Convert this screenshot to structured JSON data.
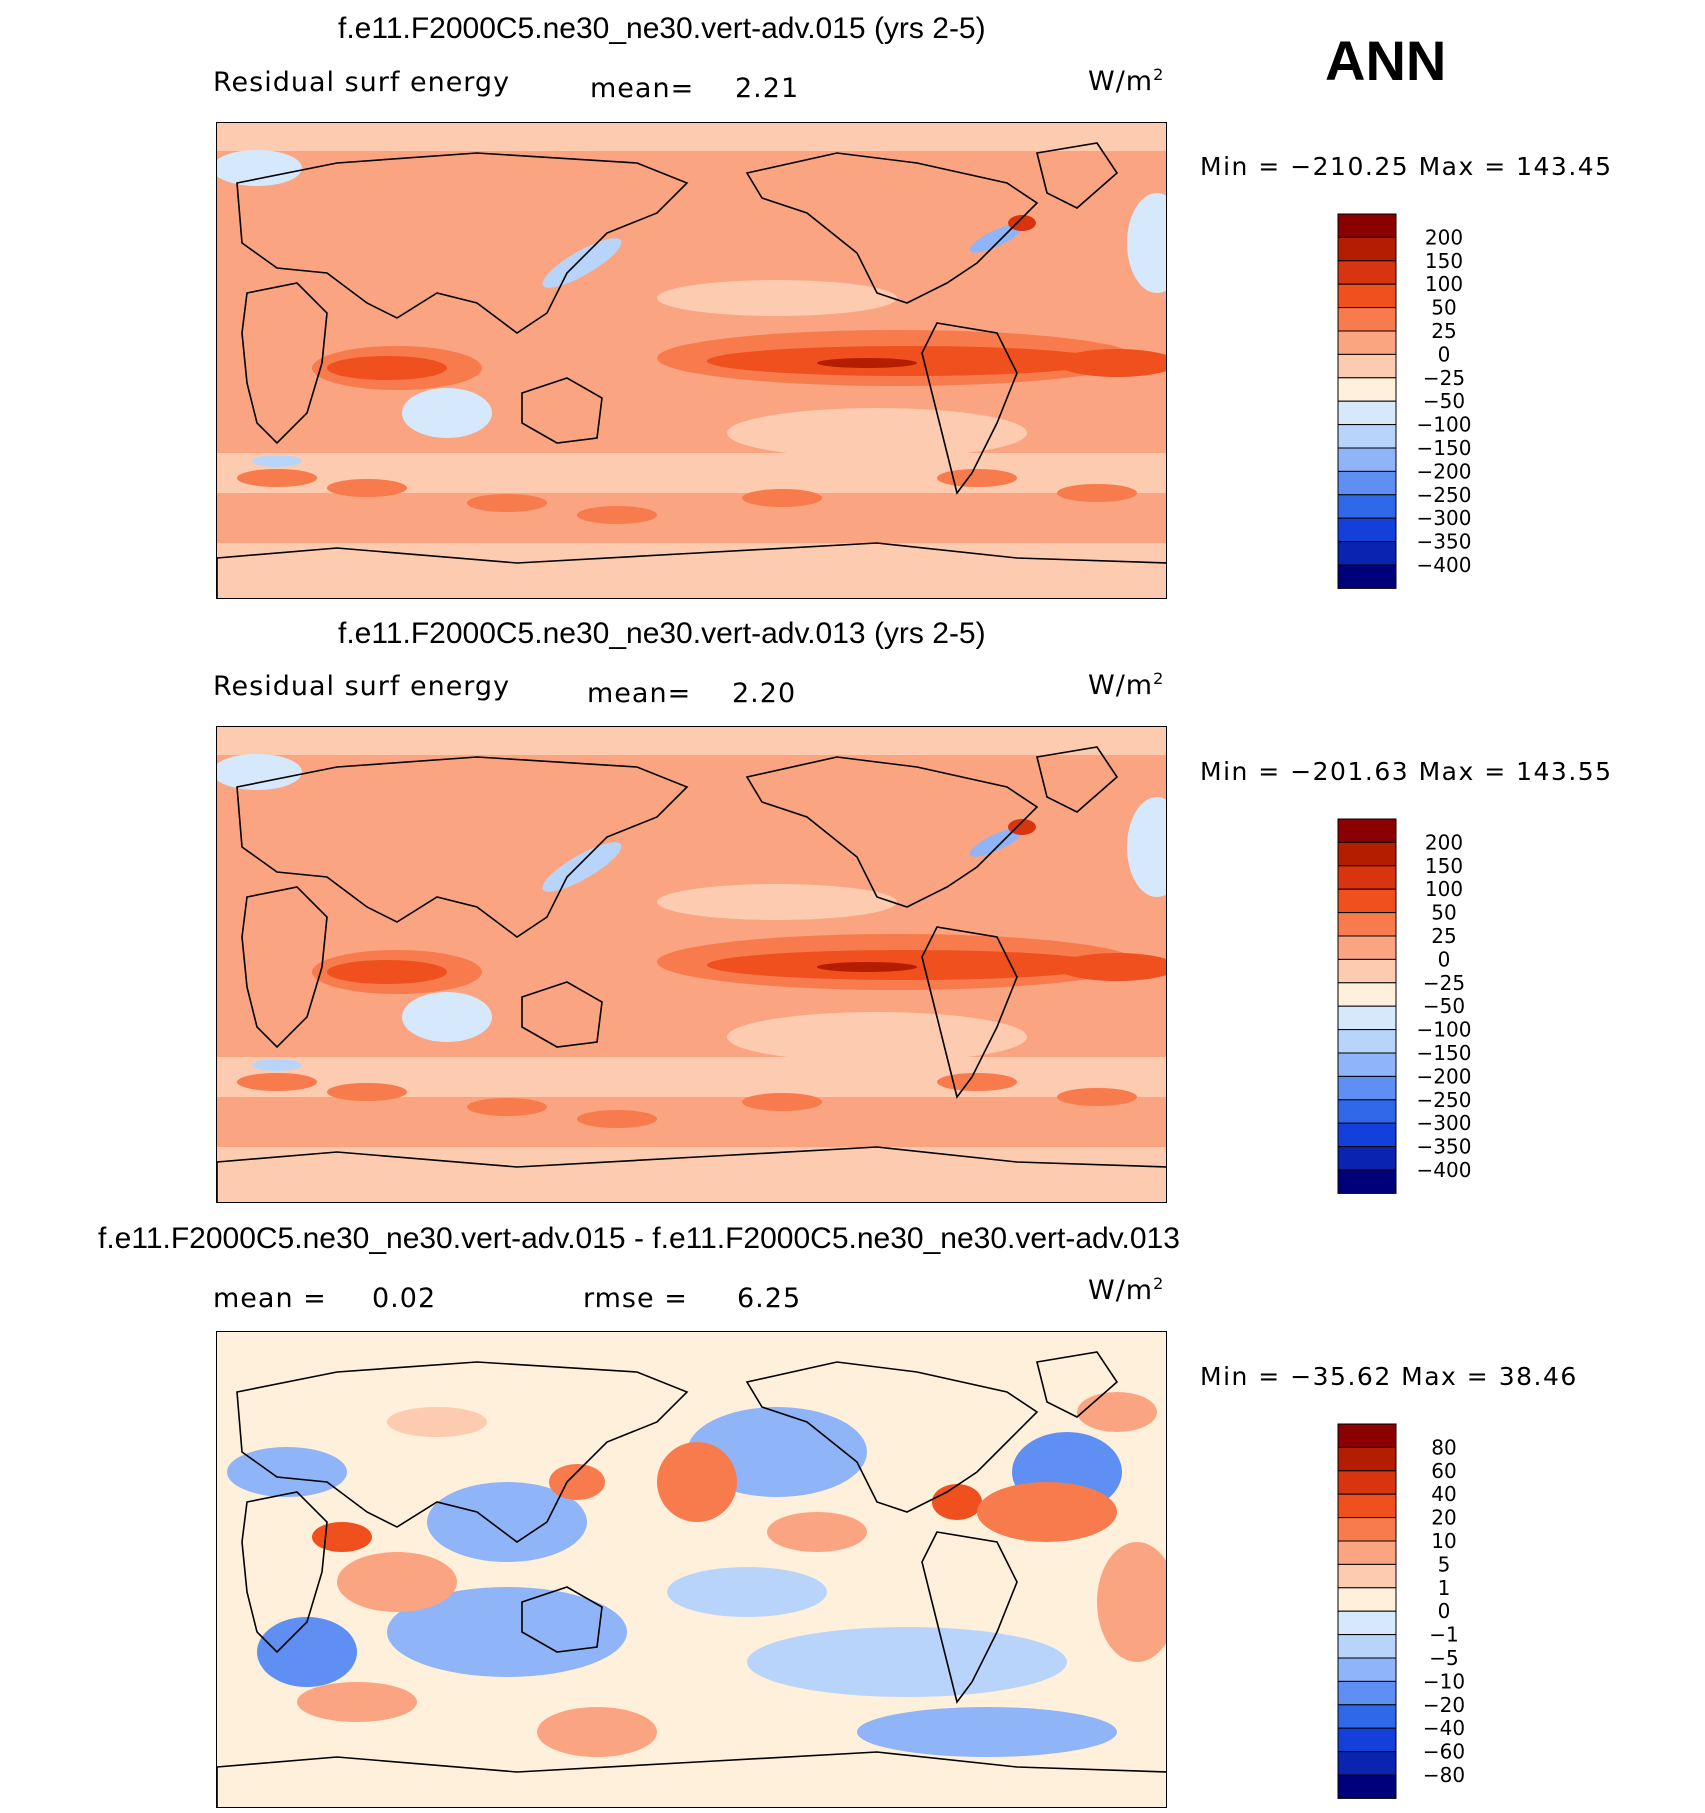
{
  "season": "ANN",
  "units_prefix": "W/m",
  "units_exp": "2",
  "panels": [
    {
      "title": "f.e11.F2000C5.ne30_ne30.vert-adv.015 (yrs 2-5)",
      "variable": "Residual surf energy",
      "stat1_label": "mean=",
      "stat1_value": "2.21",
      "minmax": "Min = −210.25 Max = 143.45"
    },
    {
      "title": "f.e11.F2000C5.ne30_ne30.vert-adv.013 (yrs 2-5)",
      "variable": "Residual surf energy",
      "stat1_label": "mean=",
      "stat1_value": "2.20",
      "minmax": "Min = −201.63 Max = 143.55"
    },
    {
      "title": "f.e11.F2000C5.ne30_ne30.vert-adv.015 - f.e11.F2000C5.ne30_ne30.vert-adv.013",
      "stat1_label": "mean =",
      "stat1_value": "0.02",
      "stat2_label": "rmse =",
      "stat2_value": "6.25",
      "minmax": "Min = −35.62 Max =  38.46"
    }
  ],
  "chart_data": [
    {
      "type": "heatmap",
      "title": "f.e11.F2000C5.ne30_ne30.vert-adv.015 (yrs 2-5)",
      "variable": "Residual surf energy",
      "units": "W/m2",
      "mean": 2.21,
      "min": -210.25,
      "max": 143.45,
      "levels": [
        "200",
        "150",
        "100",
        "50",
        "25",
        "0",
        "−25",
        "−50",
        "−100",
        "−150",
        "−200",
        "−250",
        "−300",
        "−350",
        "−400"
      ],
      "colors": [
        "#8b0000",
        "#b51d00",
        "#d93410",
        "#f04f1e",
        "#f77b4d",
        "#fba482",
        "#fccbb0",
        "#fff0dc",
        "#d6e8fc",
        "#b8d4fb",
        "#8fb4f7",
        "#5f8ff2",
        "#3068ea",
        "#1340da",
        "#0a23b0",
        "#00007a"
      ]
    },
    {
      "type": "heatmap",
      "title": "f.e11.F2000C5.ne30_ne30.vert-adv.013 (yrs 2-5)",
      "variable": "Residual surf energy",
      "units": "W/m2",
      "mean": 2.2,
      "min": -201.63,
      "max": 143.55,
      "levels": [
        "200",
        "150",
        "100",
        "50",
        "25",
        "0",
        "−25",
        "−50",
        "−100",
        "−150",
        "−200",
        "−250",
        "−300",
        "−350",
        "−400"
      ],
      "colors": [
        "#8b0000",
        "#b51d00",
        "#d93410",
        "#f04f1e",
        "#f77b4d",
        "#fba482",
        "#fccbb0",
        "#fff0dc",
        "#d6e8fc",
        "#b8d4fb",
        "#8fb4f7",
        "#5f8ff2",
        "#3068ea",
        "#1340da",
        "#0a23b0",
        "#00007a"
      ]
    },
    {
      "type": "heatmap",
      "title": "f.e11.F2000C5.ne30_ne30.vert-adv.015 - f.e11.F2000C5.ne30_ne30.vert-adv.013",
      "units": "W/m2",
      "mean": 0.02,
      "rmse": 6.25,
      "min": -35.62,
      "max": 38.46,
      "levels": [
        "80",
        "60",
        "40",
        "20",
        "10",
        "5",
        "1",
        "0",
        "−1",
        "−5",
        "−10",
        "−20",
        "−40",
        "−60",
        "−80"
      ],
      "colors": [
        "#8b0000",
        "#b51d00",
        "#d93410",
        "#f04f1e",
        "#f77b4d",
        "#fba482",
        "#fccbb0",
        "#fff0dc",
        "#d6e8fc",
        "#b8d4fb",
        "#8fb4f7",
        "#5f8ff2",
        "#3068ea",
        "#1340da",
        "#0a23b0",
        "#00007a"
      ]
    }
  ]
}
